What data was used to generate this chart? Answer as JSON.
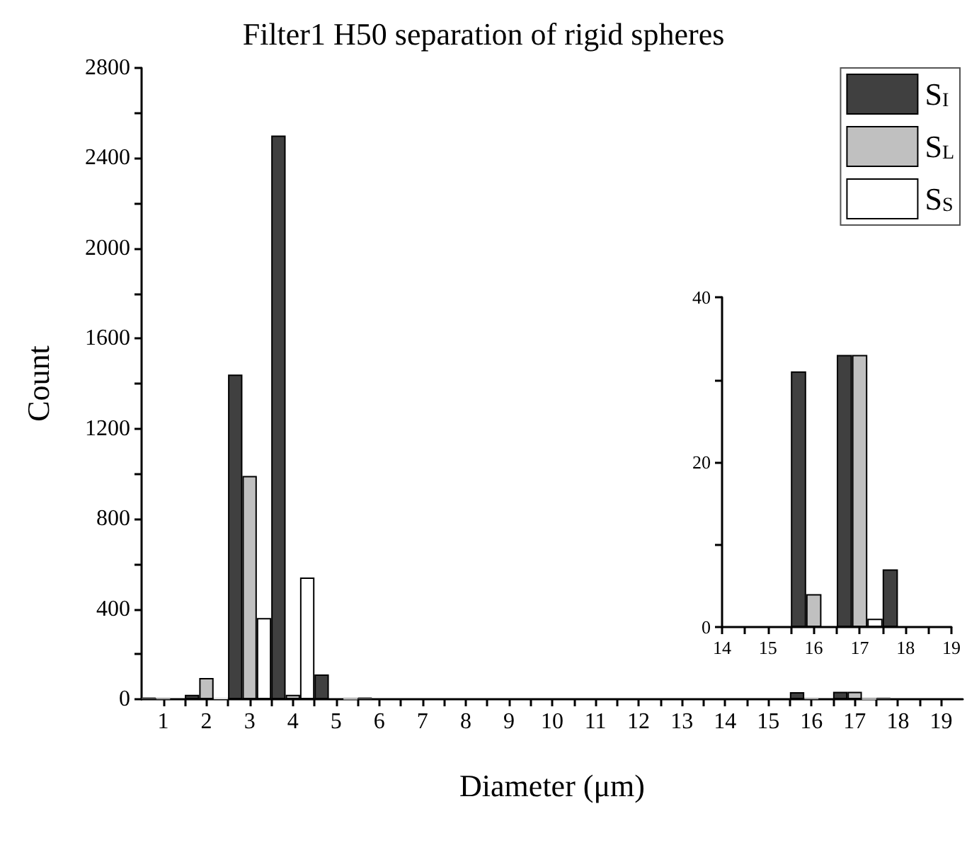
{
  "chart_data": [
    {
      "type": "bar",
      "title": "Filter1 H50 separation of rigid spheres",
      "xlabel": "Diameter (μm)",
      "ylabel": "Count",
      "x": [
        1,
        2,
        3,
        4,
        5,
        6,
        7,
        8,
        9,
        10,
        11,
        12,
        13,
        14,
        15,
        16,
        17,
        18,
        19
      ],
      "series": [
        {
          "name": "S$_{I}$",
          "color": "#404040",
          "values": [
            8,
            20,
            1440,
            2500,
            110,
            8,
            0,
            0,
            0,
            0,
            0,
            0,
            0,
            0,
            0,
            31,
            33,
            7,
            0
          ]
        },
        {
          "name": "S$_{L}$",
          "color": "#c0c0c0",
          "values": [
            3,
            94,
            990,
            20,
            0,
            0,
            0,
            0,
            0,
            0,
            0,
            0,
            0,
            0,
            0,
            4,
            33,
            0,
            0
          ]
        },
        {
          "name": "S$_{S}$",
          "color": "#ffffff",
          "values": [
            0,
            5,
            360,
            540,
            2,
            0,
            0,
            0,
            0,
            0,
            0,
            0,
            0,
            0,
            0,
            0,
            1,
            0,
            0
          ]
        }
      ],
      "xlim": [
        0.5,
        19.5
      ],
      "xticks": [
        1,
        {
          "value": 1.5,
          "label": null
        },
        2,
        {
          "value": 2.5,
          "label": null
        },
        3,
        {
          "value": 3.5,
          "label": null
        },
        4,
        {
          "value": 4.5,
          "label": null
        },
        5,
        {
          "value": 5.5,
          "label": null
        },
        6,
        {
          "value": 6.5,
          "label": null
        },
        7,
        {
          "value": 7.5,
          "label": null
        },
        8,
        {
          "value": 8.5,
          "label": null
        },
        9,
        {
          "value": 9.5,
          "label": null
        },
        10,
        {
          "value": 10.5,
          "label": null
        },
        11,
        {
          "value": 11.5,
          "label": null
        },
        12,
        {
          "value": 12.5,
          "label": null
        },
        13,
        {
          "value": 13.5,
          "label": null
        },
        14,
        {
          "value": 14.5,
          "label": null
        },
        15,
        {
          "value": 15.5,
          "label": null
        },
        16,
        {
          "value": 16.5,
          "label": null
        },
        17,
        {
          "value": 17.5,
          "label": null
        },
        18,
        {
          "value": 18.5,
          "label": null
        },
        19
      ],
      "ylim": [
        0,
        2800
      ],
      "yticks": [
        0,
        {
          "value": 200,
          "label": null
        },
        400,
        {
          "value": 600,
          "label": null
        },
        800,
        {
          "value": 1000,
          "label": null
        },
        1200,
        {
          "value": 1400,
          "label": null
        },
        1600,
        {
          "value": 1800,
          "label": null
        },
        2000,
        {
          "value": 2200,
          "label": null
        },
        2400,
        {
          "value": 2600,
          "label": null
        },
        2800
      ],
      "legend": "top right"
    },
    {
      "type": "bar",
      "x": [
        15,
        16,
        17,
        18
      ],
      "series": [
        {
          "color": "#404040",
          "values": [
            0,
            31,
            33,
            7
          ]
        },
        {
          "color": "#c0c0c0",
          "values": [
            0,
            4,
            33,
            0
          ]
        },
        {
          "color": "#ffffff",
          "values": [
            0,
            0,
            1,
            0
          ]
        }
      ],
      "xlim": [
        14,
        19
      ],
      "xticks": [
        14,
        {
          "value": 14.5,
          "label": null
        },
        15,
        {
          "value": 15.5,
          "label": null
        },
        16,
        {
          "value": 16.5,
          "label": null
        },
        17,
        {
          "value": 17.5,
          "label": null
        },
        18,
        {
          "value": 18.5,
          "label": null
        },
        19
      ],
      "ylim": [
        0,
        40
      ],
      "yticks": [
        0,
        {
          "value": 10,
          "label": null
        },
        20,
        {
          "value": 30,
          "label": null
        },
        40
      ]
    }
  ]
}
